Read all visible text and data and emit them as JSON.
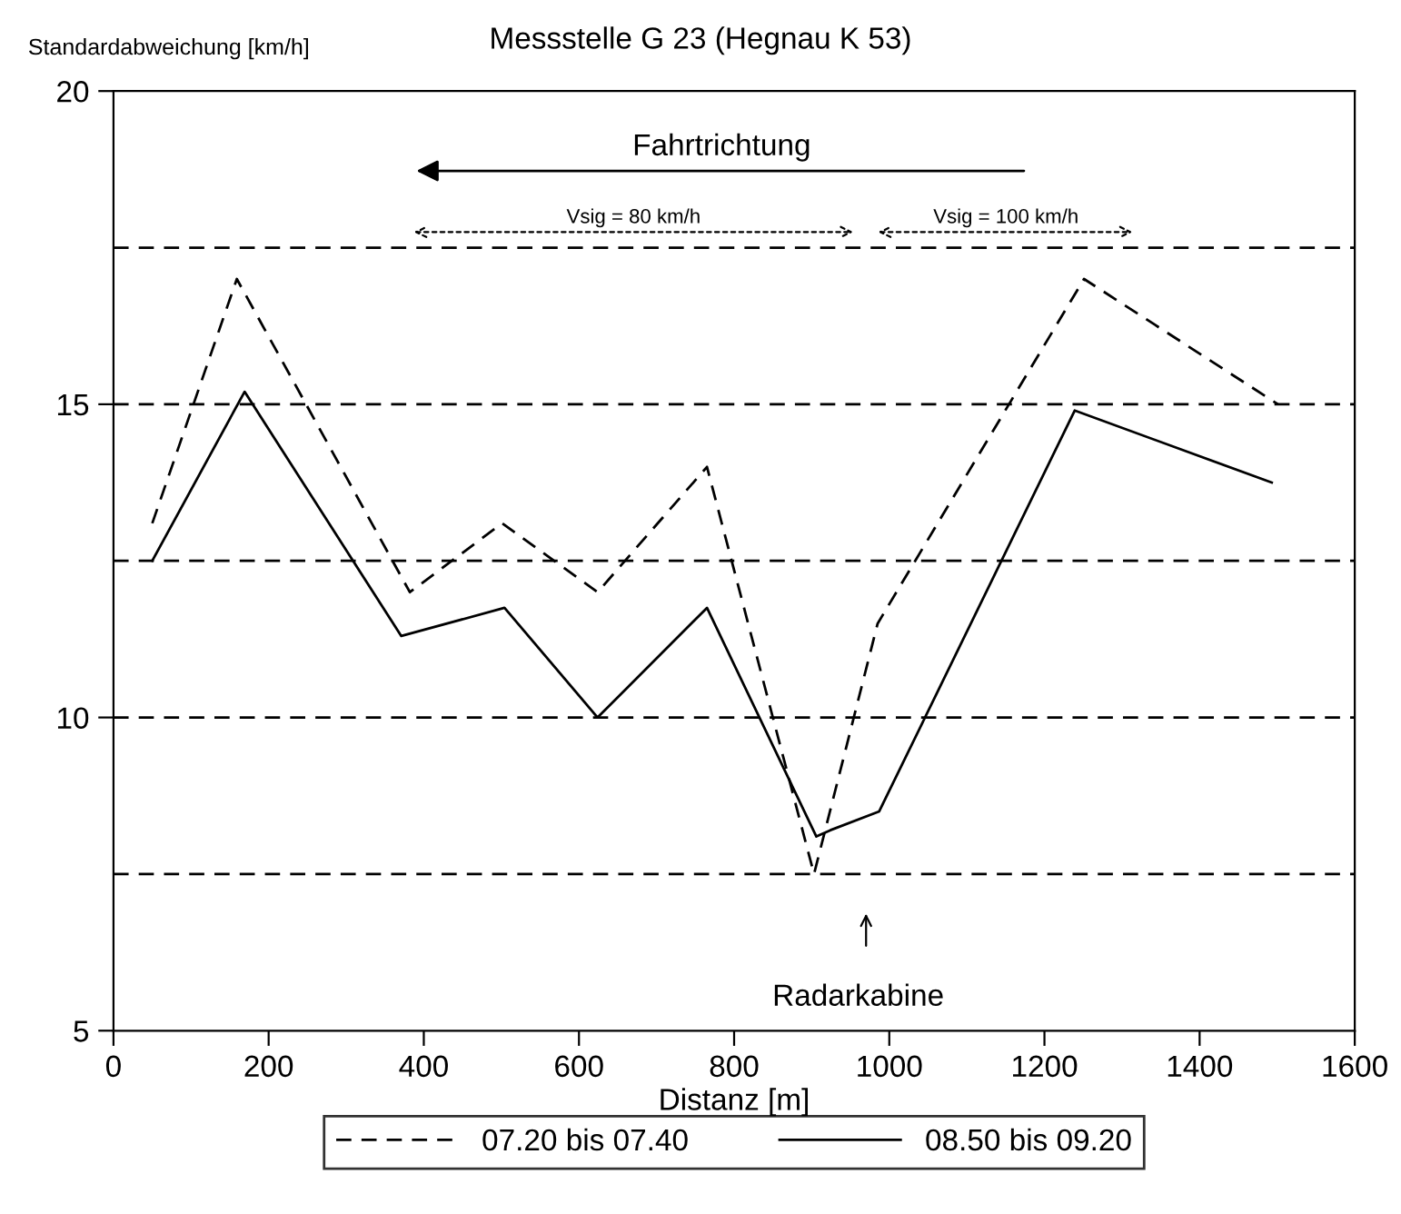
{
  "chart_data": {
    "type": "line",
    "title": "Messstelle G 23 (Hegnau K 53)",
    "xlabel": "Distanz [m]",
    "ylabel": "Standardabweichung [km/h]",
    "xlim": [
      0,
      1600
    ],
    "xticks": [
      0,
      200,
      400,
      600,
      800,
      1000,
      1200,
      1400,
      1600
    ],
    "ylim": [
      5,
      20
    ],
    "yticks": [
      5,
      10,
      15,
      20
    ],
    "series": [
      {
        "name": "07.20 bis 07.40",
        "color": "#000000",
        "line_style": "dashed",
        "x": [
          50,
          159,
          382,
          501,
          624,
          765,
          903,
          985,
          1251,
          1501
        ],
        "values": [
          13.1,
          17.0,
          12.0,
          13.1,
          12.0,
          14.0,
          7.5,
          11.5,
          17.0,
          15.0
        ]
      },
      {
        "name": "08.50 bis 09.20",
        "color": "#000000",
        "line_style": "solid",
        "x": [
          50,
          169,
          371,
          504,
          624,
          765,
          906,
          924,
          987,
          1239,
          1493
        ],
        "values": [
          12.5,
          15.2,
          11.3,
          11.75,
          10.0,
          11.75,
          8.1,
          8.2,
          8.5,
          14.9,
          13.75
        ]
      }
    ],
    "ref_lines": [
      {
        "axis": "y",
        "value": 7.5,
        "color": "#000000",
        "line_style": "dashed"
      },
      {
        "axis": "y",
        "value": 10,
        "color": "#000000",
        "line_style": "dashed"
      },
      {
        "axis": "y",
        "value": 12.5,
        "color": "#000000",
        "line_style": "dashed"
      },
      {
        "axis": "y",
        "value": 15,
        "color": "#000000",
        "line_style": "dashed"
      },
      {
        "axis": "y",
        "value": 17.5,
        "color": "#000000",
        "line_style": "dashed"
      }
    ],
    "annotations": [
      "Fahrtrichtung",
      "Vsig = 80 km/h",
      "Vsig = 100 km/h",
      "Radarkabine"
    ],
    "grid": false,
    "legend": "bottom",
    "marker": "none"
  }
}
